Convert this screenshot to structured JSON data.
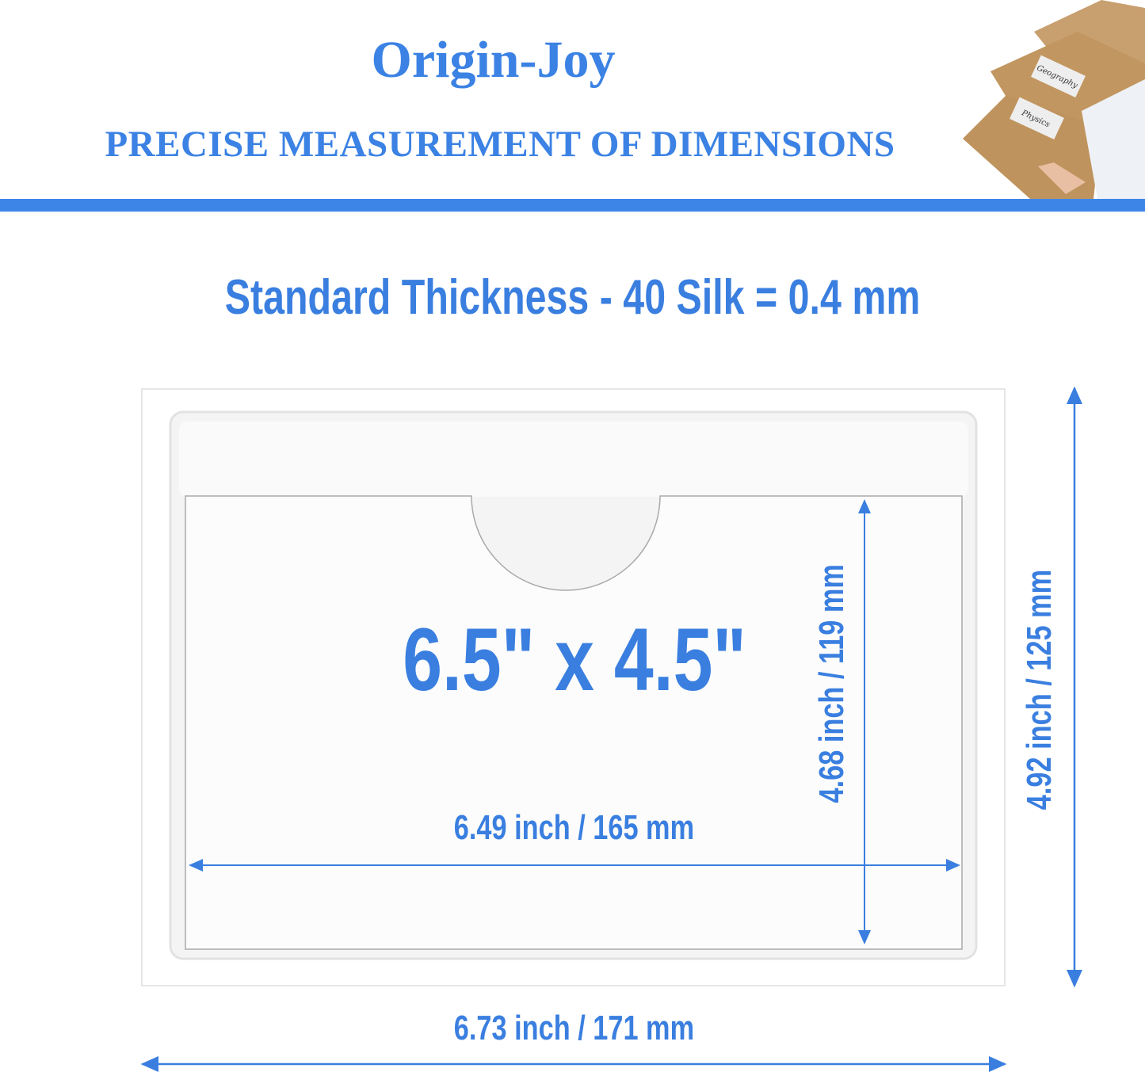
{
  "header": {
    "brand": "Origin-Joy",
    "tagline": "PRECISE MEASUREMENT OF DIMENSIONS",
    "photo_labels": [
      "Geography",
      "Physics"
    ]
  },
  "thickness": "Standard Thickness - 40 Silk = 0.4 mm",
  "product": {
    "size_label": "6.5\" x 4.5\"",
    "inner_width": "6.49 inch / 165 mm",
    "inner_height": "4.68 inch / 119 mm",
    "outer_width": "6.73 inch / 171 mm",
    "outer_height": "4.92 inch / 125 mm"
  },
  "colors": {
    "accent": "#3a7fe0",
    "bar": "#3d86e8"
  }
}
